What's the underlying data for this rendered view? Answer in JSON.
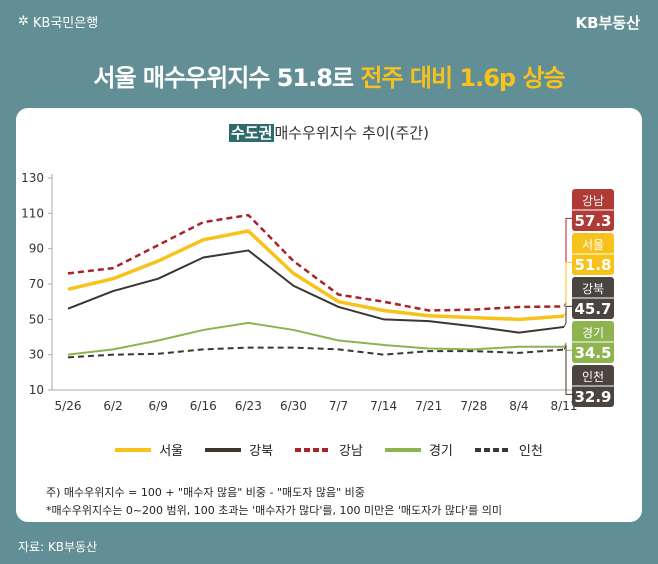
{
  "brand_left": "KB국민은행",
  "brand_right": "KB부동산",
  "headline": {
    "part1": "서울 매수우위지수 51.8로 ",
    "part2": "전주 대비 1.6p 상승"
  },
  "chart_data": {
    "type": "line",
    "title_tag": "수도권",
    "title_rest": "매수우위지수 추이(주간)",
    "categories": [
      "5/26",
      "6/2",
      "6/9",
      "6/16",
      "6/23",
      "6/30",
      "7/7",
      "7/14",
      "7/21",
      "7/28",
      "8/4",
      "8/11"
    ],
    "yticks": [
      10,
      30,
      50,
      70,
      90,
      110,
      130
    ],
    "ylim": [
      10,
      130
    ],
    "series": [
      {
        "name": "서울",
        "color": "#f7c21b",
        "dash": false,
        "width": 3.5,
        "last_label": "51.8",
        "values": [
          67,
          73,
          83,
          95,
          100,
          76,
          60,
          55,
          52,
          51,
          50,
          51.8
        ]
      },
      {
        "name": "강북",
        "color": "#3c3530",
        "dash": false,
        "width": 2,
        "last_label": "45.7",
        "values": [
          56,
          66,
          73,
          85,
          89,
          69,
          57,
          50,
          49,
          46,
          42.5,
          45.7
        ]
      },
      {
        "name": "강남",
        "color": "#a8232a",
        "dash": true,
        "width": 2.5,
        "last_label": "57.3",
        "values": [
          76,
          79,
          92,
          105,
          109,
          83,
          64,
          60,
          55,
          55.5,
          57,
          57.3
        ]
      },
      {
        "name": "경기",
        "color": "#8db44f",
        "dash": false,
        "width": 2,
        "last_label": "34.5",
        "values": [
          30,
          33,
          38,
          44,
          48,
          44,
          38,
          35.5,
          33.5,
          33,
          34.5,
          34.5
        ]
      },
      {
        "name": "인천",
        "color": "#3c3530",
        "dash": true,
        "width": 2,
        "last_label": "32.9",
        "values": [
          28.5,
          30,
          30.5,
          33,
          34,
          34,
          33,
          30,
          32,
          32,
          31,
          32.9
        ]
      }
    ],
    "label_order": [
      "강남",
      "서울",
      "강북",
      "경기",
      "인천"
    ],
    "label_colors": {
      "강남": "#b03a36",
      "서울": "#f7c21b",
      "강북": "#4a4540",
      "경기": "#8db44f",
      "인천": "#4a4540"
    }
  },
  "notes": [
    "주) 매수우위지수 = 100 + \"매수자 많음\" 비중 - \"매도자 많음\" 비중",
    "*매수우위지수는 0~200 범위, 100 초과는 '매수자가 많다'를, 100 미만은 '매도자가 많다'를 의미"
  ],
  "source": "자료: KB부동산"
}
